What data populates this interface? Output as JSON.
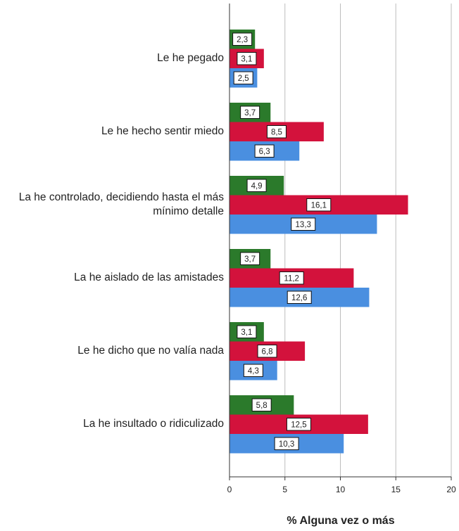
{
  "chart_data": {
    "type": "bar",
    "orientation": "horizontal",
    "categories": [
      "Le he pegado",
      "Le he hecho sentir miedo",
      "La he controlado, decidiendo hasta el más\nmínimo detalle",
      "La he aislado de las amistades",
      "Le he dicho que no valía nada",
      "La he insultado o ridiculizado"
    ],
    "series": [
      {
        "color": "#2b7a2b",
        "values": [
          2.3,
          3.7,
          4.9,
          3.7,
          3.1,
          5.8
        ],
        "value_labels": [
          "2,3",
          "3,7",
          "4,9",
          "3,7",
          "3,1",
          "5,8"
        ]
      },
      {
        "color": "#d3123c",
        "values": [
          3.1,
          8.5,
          16.1,
          11.2,
          6.8,
          12.5
        ],
        "value_labels": [
          "3,1",
          "8,5",
          "16,1",
          "11,2",
          "6,8",
          "12,5"
        ]
      },
      {
        "color": "#4a8fe0",
        "values": [
          2.5,
          6.3,
          13.3,
          12.6,
          4.3,
          10.3
        ],
        "value_labels": [
          "2,5",
          "6,3",
          "13,3",
          "12,6",
          "4,3",
          "10,3"
        ]
      }
    ],
    "xlabel": "% Alguna vez o más",
    "xlim": [
      0,
      20
    ],
    "xticks": [
      0,
      5,
      10,
      15,
      20
    ],
    "grid": true
  }
}
